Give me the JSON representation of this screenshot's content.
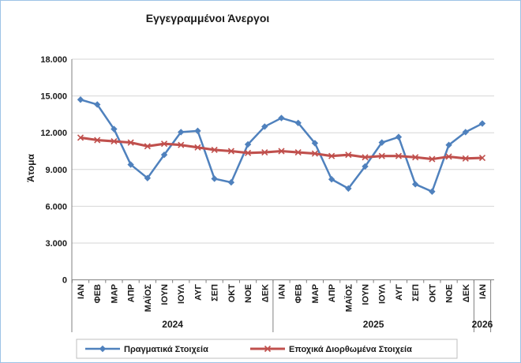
{
  "title": "Εγγεγραμμένοι Άνεργοι",
  "colors": {
    "frame_border": "#9DC3E6",
    "gridline": "#D6D6D6",
    "axis_line": "#808080",
    "legend_border": "#BFBFBF",
    "actual_series": "#4F81BD",
    "adjusted_series": "#C0504D",
    "text": "#1a1a1a"
  },
  "chart_data": {
    "type": "line",
    "title": "Εγγεγραμμένοι Άνεργοι",
    "xlabel": "",
    "ylabel": "Άτομα",
    "ylim": [
      0,
      18000
    ],
    "ytick_step": 3000,
    "ytick_labels": [
      "0",
      "3.000",
      "6.000",
      "9.000",
      "12.000",
      "15.000",
      "18.000"
    ],
    "grid": true,
    "legend_position": "bottom",
    "categories": [
      "ΙΑΝ",
      "ΦΕΒ",
      "ΜΑΡ",
      "ΑΠΡ",
      "ΜΑΪΟΣ",
      "ΙΟΥΝ",
      "ΙΟΥΛ",
      "ΑΥΓ",
      "ΣΕΠ",
      "ΟΚΤ",
      "ΝΟΕ",
      "ΔΕΚ",
      "ΙΑΝ",
      "ΦΕΒ",
      "ΜΑΡ",
      "ΑΠΡ",
      "ΜΑΪΟΣ",
      "ΙΟΥΝ",
      "ΙΟΥΛ",
      "ΑΥΓ",
      "ΣΕΠ",
      "ΟΚΤ",
      "ΝΟΕ",
      "ΔΕΚ",
      "ΙΑΝ"
    ],
    "year_groups": [
      {
        "label": "2024",
        "start": 0,
        "end": 11
      },
      {
        "label": "2025",
        "start": 12,
        "end": 23
      },
      {
        "label": "2026",
        "start": 24,
        "end": 24
      }
    ],
    "series": [
      {
        "name": "Πραγματικά Στοιχεία",
        "color": "#4F81BD",
        "marker": "diamond",
        "values": [
          14700,
          14300,
          12300,
          9400,
          8300,
          10200,
          12050,
          12150,
          8250,
          7950,
          11050,
          12500,
          13200,
          12800,
          11150,
          8200,
          7450,
          9250,
          11200,
          11650,
          7800,
          7200,
          11000,
          12050,
          12750
        ]
      },
      {
        "name": "Εποχικά Διορθωμένα Στοιχεία",
        "color": "#C0504D",
        "marker": "x",
        "values": [
          11600,
          11400,
          11300,
          11200,
          10900,
          11100,
          11000,
          10800,
          10600,
          10500,
          10350,
          10400,
          10500,
          10400,
          10300,
          10100,
          10200,
          10000,
          10100,
          10100,
          10000,
          9850,
          10050,
          9900,
          9950
        ]
      }
    ]
  }
}
